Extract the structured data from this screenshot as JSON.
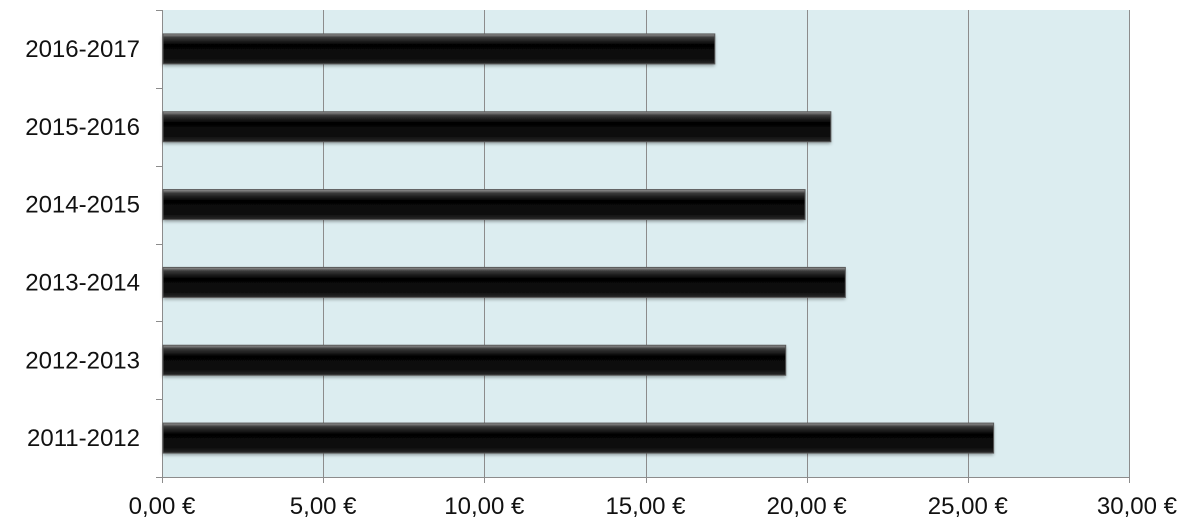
{
  "chart_data": {
    "type": "bar",
    "orientation": "horizontal",
    "title": "",
    "xlabel": "",
    "ylabel": "",
    "categories": [
      "2011-2012",
      "2012-2013",
      "2013-2014",
      "2014-2015",
      "2015-2016",
      "2016-2017"
    ],
    "values": [
      25.8,
      19.35,
      21.2,
      19.95,
      20.75,
      17.15
    ],
    "xlim": [
      0,
      30
    ],
    "x_ticks": [
      0,
      5,
      10,
      15,
      20,
      25,
      30
    ],
    "x_tick_labels": [
      "0,00 €",
      "5,00 €",
      "10,00 €",
      "15,00 €",
      "20,00 €",
      "25,00 €",
      "30,00 €"
    ],
    "grid": "vertical",
    "legend": "none",
    "colors": {
      "plot_background": "#dcedf0",
      "bar": "#0c0c0c",
      "bar_highlight": "#8a8a8a",
      "grid": "#8c8c8c",
      "axis": "#8c8c8c"
    }
  }
}
